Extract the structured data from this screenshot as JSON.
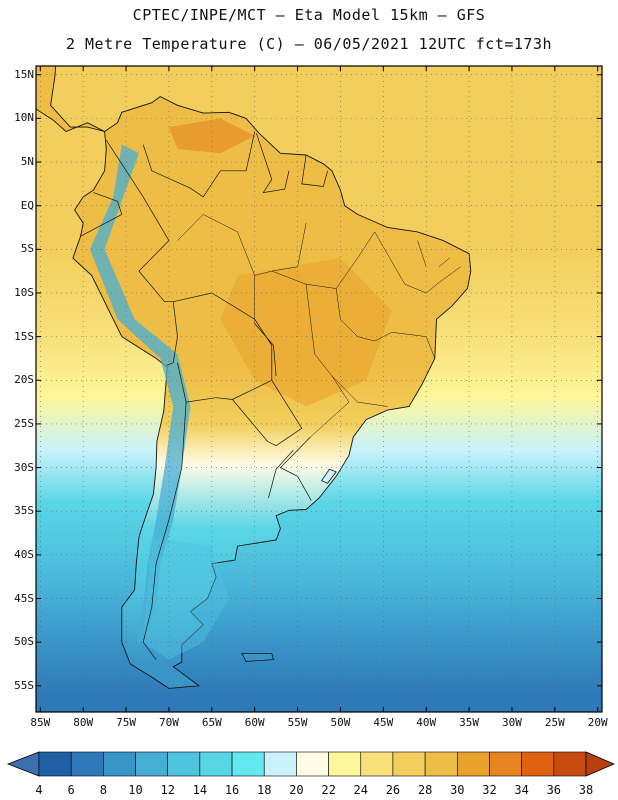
{
  "header": {
    "line1": "CPTEC/INPE/MCT –  Eta Model 15km – GFS",
    "line2": "2 Metre Temperature (C) – 06/05/2021 12UTC fct=173h"
  },
  "map": {
    "lat_labels": [
      "15N",
      "10N",
      "5N",
      "EQ",
      "5S",
      "10S",
      "15S",
      "20S",
      "25S",
      "30S",
      "35S",
      "40S",
      "45S",
      "50S",
      "55S"
    ],
    "lon_labels": [
      "85W",
      "80W",
      "75W",
      "70W",
      "65W",
      "60W",
      "55W",
      "50W",
      "45W",
      "40W",
      "35W",
      "30W",
      "25W",
      "20W"
    ],
    "ocean_gradient": [
      {
        "lat": 15,
        "temp": 27
      },
      {
        "lat": 5,
        "temp": 27
      },
      {
        "lat": -5,
        "temp": 26
      },
      {
        "lat": -15,
        "temp": 24
      },
      {
        "lat": -22,
        "temp": 22
      },
      {
        "lat": -28,
        "temp": 19
      },
      {
        "lat": -34,
        "temp": 15
      },
      {
        "lat": -40,
        "temp": 13
      },
      {
        "lat": -45,
        "temp": 11
      },
      {
        "lat": -50,
        "temp": 9
      },
      {
        "lat": -56,
        "temp": 7
      }
    ],
    "land_temp_range": [
      20,
      34
    ]
  },
  "colorbar": {
    "labels": [
      "4",
      "6",
      "8",
      "10",
      "12",
      "14",
      "16",
      "18",
      "20",
      "22",
      "24",
      "26",
      "28",
      "30",
      "32",
      "34",
      "36",
      "38"
    ],
    "colors": [
      "#1f5fa3",
      "#2e7ab8",
      "#3a95c8",
      "#45aed6",
      "#4fc3df",
      "#59d6e6",
      "#62e8ef",
      "#c9f2fb",
      "#fffbe5",
      "#fdf69a",
      "#f8e07a",
      "#f2cf5c",
      "#eebd45",
      "#e9a32a",
      "#e58420",
      "#de6212",
      "#c84a0c"
    ],
    "under_color": "#3a6fb0",
    "over_color": "#b8400e"
  }
}
